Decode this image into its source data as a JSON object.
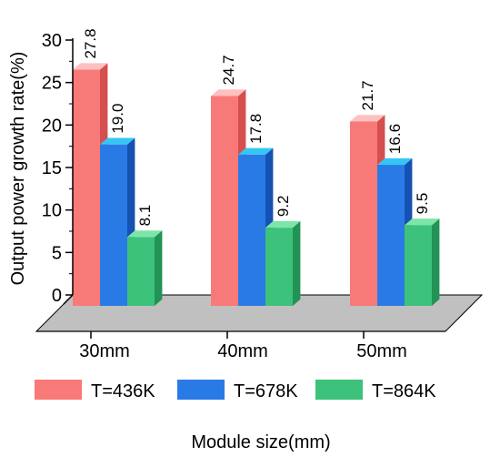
{
  "chart_data": {
    "type": "bar",
    "categories": [
      "30mm",
      "40mm",
      "50mm"
    ],
    "series": [
      {
        "name": "T=436K",
        "values": [
          27.8,
          24.7,
          21.7
        ],
        "color": "#f87a78",
        "top_color": "#ffc0c0",
        "side_color": "#d44f4e"
      },
      {
        "name": "T=678K",
        "values": [
          19.0,
          17.8,
          16.6
        ],
        "color": "#2a7ae6",
        "top_color": "#36c6f4",
        "side_color": "#1552b3"
      },
      {
        "name": "T=864K",
        "values": [
          8.1,
          9.2,
          9.5
        ],
        "color": "#3cc27a",
        "top_color": "#7be6a8",
        "side_color": "#219355"
      }
    ],
    "data_labels": [
      [
        "27.8",
        "19.0",
        "8.1"
      ],
      [
        "24.7",
        "17.8",
        "9.2"
      ],
      [
        "21.7",
        "16.6",
        "9.5"
      ]
    ],
    "xlabel": "Module size(mm)",
    "ylabel": "Output power growth rate(%)",
    "ylim": [
      0,
      30
    ],
    "yticks": [
      "0",
      "5",
      "10",
      "15",
      "20",
      "25",
      "30"
    ],
    "legend_position": "bottom",
    "floor_color": "#c0c0c0",
    "grid": false
  }
}
